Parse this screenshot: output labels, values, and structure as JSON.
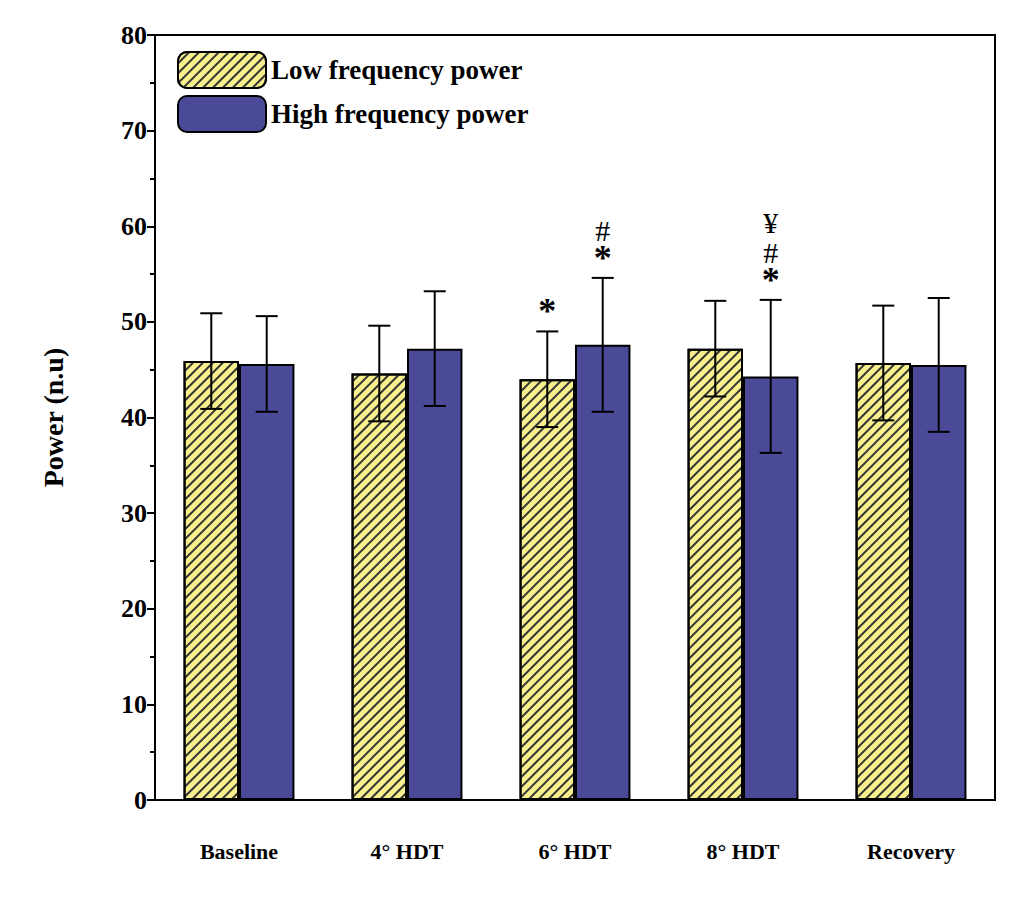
{
  "chart_data": {
    "type": "bar",
    "categories": [
      "Baseline",
      "4° HDT",
      "6° HDT",
      "8° HDT",
      "Recovery"
    ],
    "ylabel": "Power (n.u)",
    "ylim": [
      0,
      80
    ],
    "yticks": [
      0,
      10,
      20,
      30,
      40,
      50,
      60,
      70,
      80
    ],
    "legend": "upper left",
    "series": [
      {
        "name": "Low frequency power",
        "color": "#f7f08c",
        "values": [
          45.9,
          44.6,
          44.0,
          47.2,
          45.7
        ],
        "errors": [
          5.0,
          5.0,
          5.0,
          5.0,
          6.0
        ],
        "annotations": [
          null,
          null,
          [
            "*"
          ],
          null,
          null
        ]
      },
      {
        "name": "High frequency power",
        "color": "#4b4a98",
        "values": [
          45.6,
          47.2,
          47.6,
          44.3,
          45.5
        ],
        "errors": [
          5.0,
          6.0,
          7.0,
          8.0,
          7.0
        ],
        "annotations": [
          null,
          null,
          [
            "#",
            "*"
          ],
          [
            "¥",
            "#",
            "*"
          ],
          null
        ]
      }
    ]
  }
}
